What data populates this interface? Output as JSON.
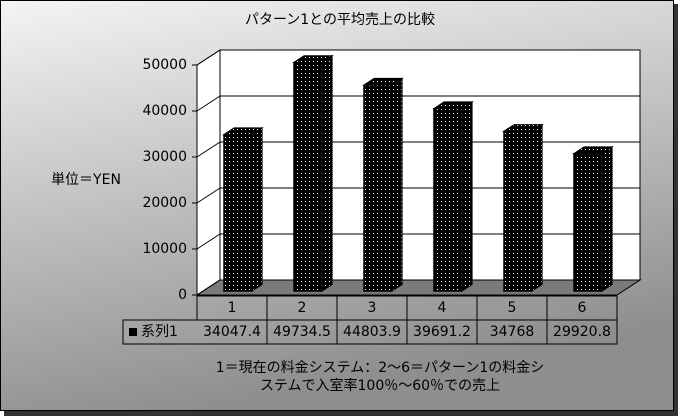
{
  "chart_data": {
    "type": "bar3d",
    "title": "パターン1との平均売上の比較",
    "y_label": "単位＝YEN",
    "categories": [
      "1",
      "2",
      "3",
      "4",
      "5",
      "6"
    ],
    "series": [
      {
        "name": "系列1",
        "color": "#000000",
        "values": [
          34047.4,
          49734.5,
          44803.9,
          39691.2,
          34768,
          29920.8
        ]
      }
    ],
    "ylim": [
      0,
      50000
    ],
    "yticks": [
      0,
      10000,
      20000,
      30000,
      40000,
      50000
    ],
    "grid": true,
    "data_table": true,
    "note_lines": [
      "1＝現在の料金システム：2～6＝パターン1の料金シ",
      "ステムで入室率100％～60％での売上"
    ]
  }
}
